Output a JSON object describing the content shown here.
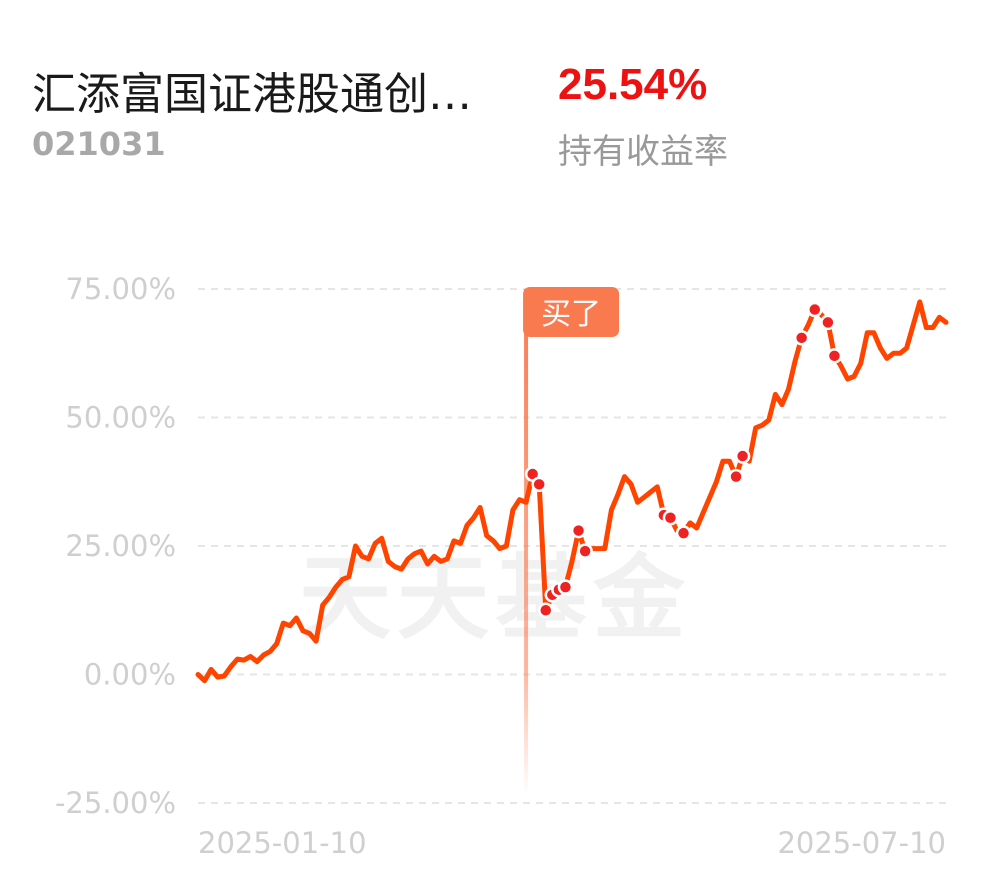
{
  "fund": {
    "name": "汇添富国证港股通创…",
    "code": "021031",
    "holding_return": "25.54%",
    "holding_return_label": "持有收益率"
  },
  "colors": {
    "line": "#ff4400",
    "marker": "#ee2222",
    "buy_marker": "#fa7a50",
    "grid": "#e5e5e5",
    "return_value": "#ee1111"
  },
  "watermark": "天天基金",
  "chart_data": {
    "type": "line",
    "title": "",
    "xlabel": "",
    "ylabel": "",
    "ylim": [
      -25,
      75
    ],
    "yticks": [
      "75.00%",
      "50.00%",
      "25.00%",
      "0.00%",
      "-25.00%"
    ],
    "ytick_values": [
      75,
      50,
      25,
      0,
      -25
    ],
    "xtick_labels": [
      "2025-01-10",
      "2025-07-10"
    ],
    "grid": true,
    "buy_annotation": {
      "label": "买了",
      "index": 50
    },
    "values": [
      0.0,
      -1.2,
      1.0,
      -0.5,
      -0.3,
      1.5,
      3.0,
      2.8,
      3.5,
      2.5,
      3.8,
      4.5,
      6.0,
      10.0,
      9.5,
      11.0,
      8.5,
      8.0,
      6.5,
      13.5,
      15.0,
      17.0,
      18.5,
      19.0,
      25.0,
      23.0,
      22.5,
      25.5,
      26.5,
      22.0,
      21.0,
      20.5,
      22.5,
      23.5,
      24.0,
      21.5,
      23.0,
      22.0,
      22.5,
      26.0,
      25.5,
      29.0,
      30.5,
      32.5,
      27.0,
      26.0,
      24.5,
      25.0,
      32.0,
      34.0,
      33.5,
      39.0,
      37.0,
      12.5,
      15.5,
      16.5,
      17.0,
      22.0,
      28.0,
      24.0,
      24.5,
      24.5,
      24.5,
      32.0,
      35.0,
      38.5,
      37.0,
      33.5,
      34.5,
      35.5,
      36.5,
      31.0,
      30.5,
      28.0,
      27.5,
      29.5,
      28.5,
      31.5,
      34.5,
      37.5,
      41.5,
      41.5,
      38.5,
      42.5,
      41.5,
      48.0,
      48.5,
      49.5,
      54.5,
      52.5,
      55.5,
      61.0,
      65.5,
      68.0,
      71.0,
      70.0,
      68.5,
      62.0,
      60.0,
      57.5,
      58.0,
      60.5,
      66.5,
      66.5,
      63.5,
      61.5,
      62.5,
      62.5,
      63.5,
      68.0,
      72.5,
      67.5,
      67.5,
      69.5,
      68.5
    ],
    "marker_indices": [
      51,
      52,
      53,
      54,
      55,
      56,
      58,
      59,
      71,
      72,
      74,
      82,
      83,
      92,
      94,
      96,
      97
    ]
  }
}
